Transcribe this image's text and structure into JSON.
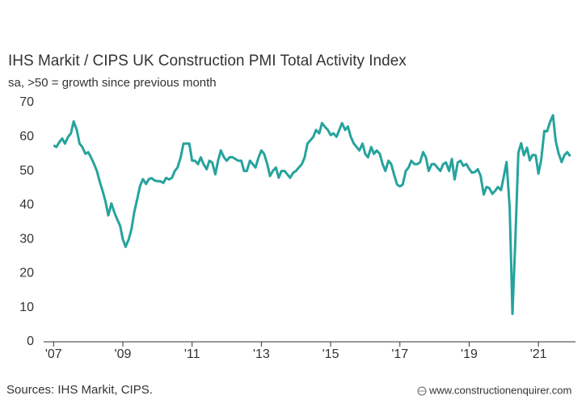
{
  "chart_data": {
    "type": "line",
    "title": "IHS Markit / CIPS UK Construction PMI Total Activity Index",
    "subtitle": "sa, >50 = growth since previous month",
    "source": "Sources: IHS Markit, CIPS.",
    "credit": "www.constructionenquirer.com",
    "x": [
      2007.0,
      2007.08,
      2007.17,
      2007.25,
      2007.33,
      2007.42,
      2007.5,
      2007.58,
      2007.67,
      2007.75,
      2007.83,
      2007.92,
      2008.0,
      2008.08,
      2008.17,
      2008.25,
      2008.33,
      2008.42,
      2008.5,
      2008.58,
      2008.67,
      2008.75,
      2008.83,
      2008.92,
      2009.0,
      2009.08,
      2009.17,
      2009.25,
      2009.33,
      2009.42,
      2009.5,
      2009.58,
      2009.67,
      2009.75,
      2009.83,
      2009.92,
      2010.0,
      2010.08,
      2010.17,
      2010.25,
      2010.33,
      2010.42,
      2010.5,
      2010.58,
      2010.67,
      2010.75,
      2010.83,
      2010.92,
      2011.0,
      2011.08,
      2011.17,
      2011.25,
      2011.33,
      2011.42,
      2011.5,
      2011.58,
      2011.67,
      2011.75,
      2011.83,
      2011.92,
      2012.0,
      2012.08,
      2012.17,
      2012.25,
      2012.33,
      2012.42,
      2012.5,
      2012.58,
      2012.67,
      2012.75,
      2012.83,
      2012.92,
      2013.0,
      2013.08,
      2013.17,
      2013.25,
      2013.33,
      2013.42,
      2013.5,
      2013.58,
      2013.67,
      2013.75,
      2013.83,
      2013.92,
      2014.0,
      2014.08,
      2014.17,
      2014.25,
      2014.33,
      2014.42,
      2014.5,
      2014.58,
      2014.67,
      2014.75,
      2014.83,
      2014.92,
      2015.0,
      2015.08,
      2015.17,
      2015.25,
      2015.33,
      2015.42,
      2015.5,
      2015.58,
      2015.67,
      2015.75,
      2015.83,
      2015.92,
      2016.0,
      2016.08,
      2016.17,
      2016.25,
      2016.33,
      2016.42,
      2016.5,
      2016.58,
      2016.67,
      2016.75,
      2016.83,
      2016.92,
      2017.0,
      2017.08,
      2017.17,
      2017.25,
      2017.33,
      2017.42,
      2017.5,
      2017.58,
      2017.67,
      2017.75,
      2017.83,
      2017.92,
      2018.0,
      2018.08,
      2018.17,
      2018.25,
      2018.33,
      2018.42,
      2018.5,
      2018.58,
      2018.67,
      2018.75,
      2018.83,
      2018.92,
      2019.0,
      2019.08,
      2019.17,
      2019.25,
      2019.33,
      2019.42,
      2019.5,
      2019.58,
      2019.67,
      2019.75,
      2019.83,
      2019.92,
      2020.0,
      2020.08,
      2020.17,
      2020.25,
      2020.33,
      2020.42,
      2020.5,
      2020.58,
      2020.67,
      2020.75,
      2020.83,
      2020.92,
      2021.0,
      2021.08,
      2021.17,
      2021.25,
      2021.33,
      2021.42,
      2021.5,
      2021.58,
      2021.67,
      2021.75,
      2021.83,
      2021.92
    ],
    "series": [
      {
        "name": "Total Activity Index",
        "color": "#26a39d",
        "values": [
          57.5,
          57,
          58.5,
          59.5,
          58,
          60,
          61,
          64.5,
          62,
          58,
          57,
          55,
          55.5,
          54,
          52,
          50,
          47,
          44,
          41,
          37,
          40.5,
          38,
          36,
          34,
          30,
          27.8,
          30,
          33,
          38,
          42,
          45.7,
          47.6,
          46.2,
          47.6,
          47.9,
          47.2,
          47,
          47,
          46.5,
          48,
          47.5,
          48,
          50,
          51,
          54,
          58,
          58,
          58,
          53,
          53,
          52,
          54,
          52,
          50.5,
          53,
          52.5,
          49,
          53,
          56,
          54,
          53,
          54,
          54,
          53.5,
          53,
          53,
          50,
          50,
          53,
          52,
          51,
          54,
          56,
          55,
          52,
          48.5,
          50,
          51,
          48,
          50,
          50,
          49,
          48,
          49.5,
          50,
          51,
          52,
          54,
          58,
          59,
          60,
          62,
          61,
          64,
          63,
          62,
          60.5,
          61,
          60,
          62,
          64,
          62,
          63,
          60,
          58,
          57,
          56,
          58,
          55,
          54,
          57,
          55,
          56,
          55,
          52,
          50,
          53,
          52,
          49,
          46,
          45.5,
          46,
          50,
          51,
          53,
          52,
          52,
          52.5,
          55.5,
          54,
          50,
          52,
          52,
          51,
          50,
          52,
          52.5,
          50,
          53.5,
          47.5,
          52.5,
          53,
          51.5,
          52,
          50.6,
          49.5,
          49.7,
          50.5,
          48.6,
          43.1,
          45.3,
          45,
          43.3,
          44.2,
          45.3,
          44.4,
          48.4,
          52.6,
          39.3,
          8.2,
          28.9,
          55.3,
          58.1,
          54.6,
          56.8,
          53.1,
          54.7,
          54.6,
          49.2,
          53.3,
          61.7,
          61.6,
          64.2,
          66.3,
          58.7,
          55.2,
          52.6,
          54.6,
          55.5,
          54.3
        ]
      }
    ],
    "xlim": [
      2006.9,
      2022
    ],
    "xticks": [
      {
        "value": 2007,
        "label": "'07"
      },
      {
        "value": 2009,
        "label": "'09"
      },
      {
        "value": 2011,
        "label": "'11"
      },
      {
        "value": 2013,
        "label": "'13"
      },
      {
        "value": 2015,
        "label": "'15"
      },
      {
        "value": 2017,
        "label": "'17"
      },
      {
        "value": 2019,
        "label": "'19"
      },
      {
        "value": 2021,
        "label": "'21"
      }
    ],
    "ylim": [
      0,
      70
    ],
    "yticks": [
      0,
      10,
      20,
      30,
      40,
      50,
      60,
      70
    ],
    "grid": false
  }
}
